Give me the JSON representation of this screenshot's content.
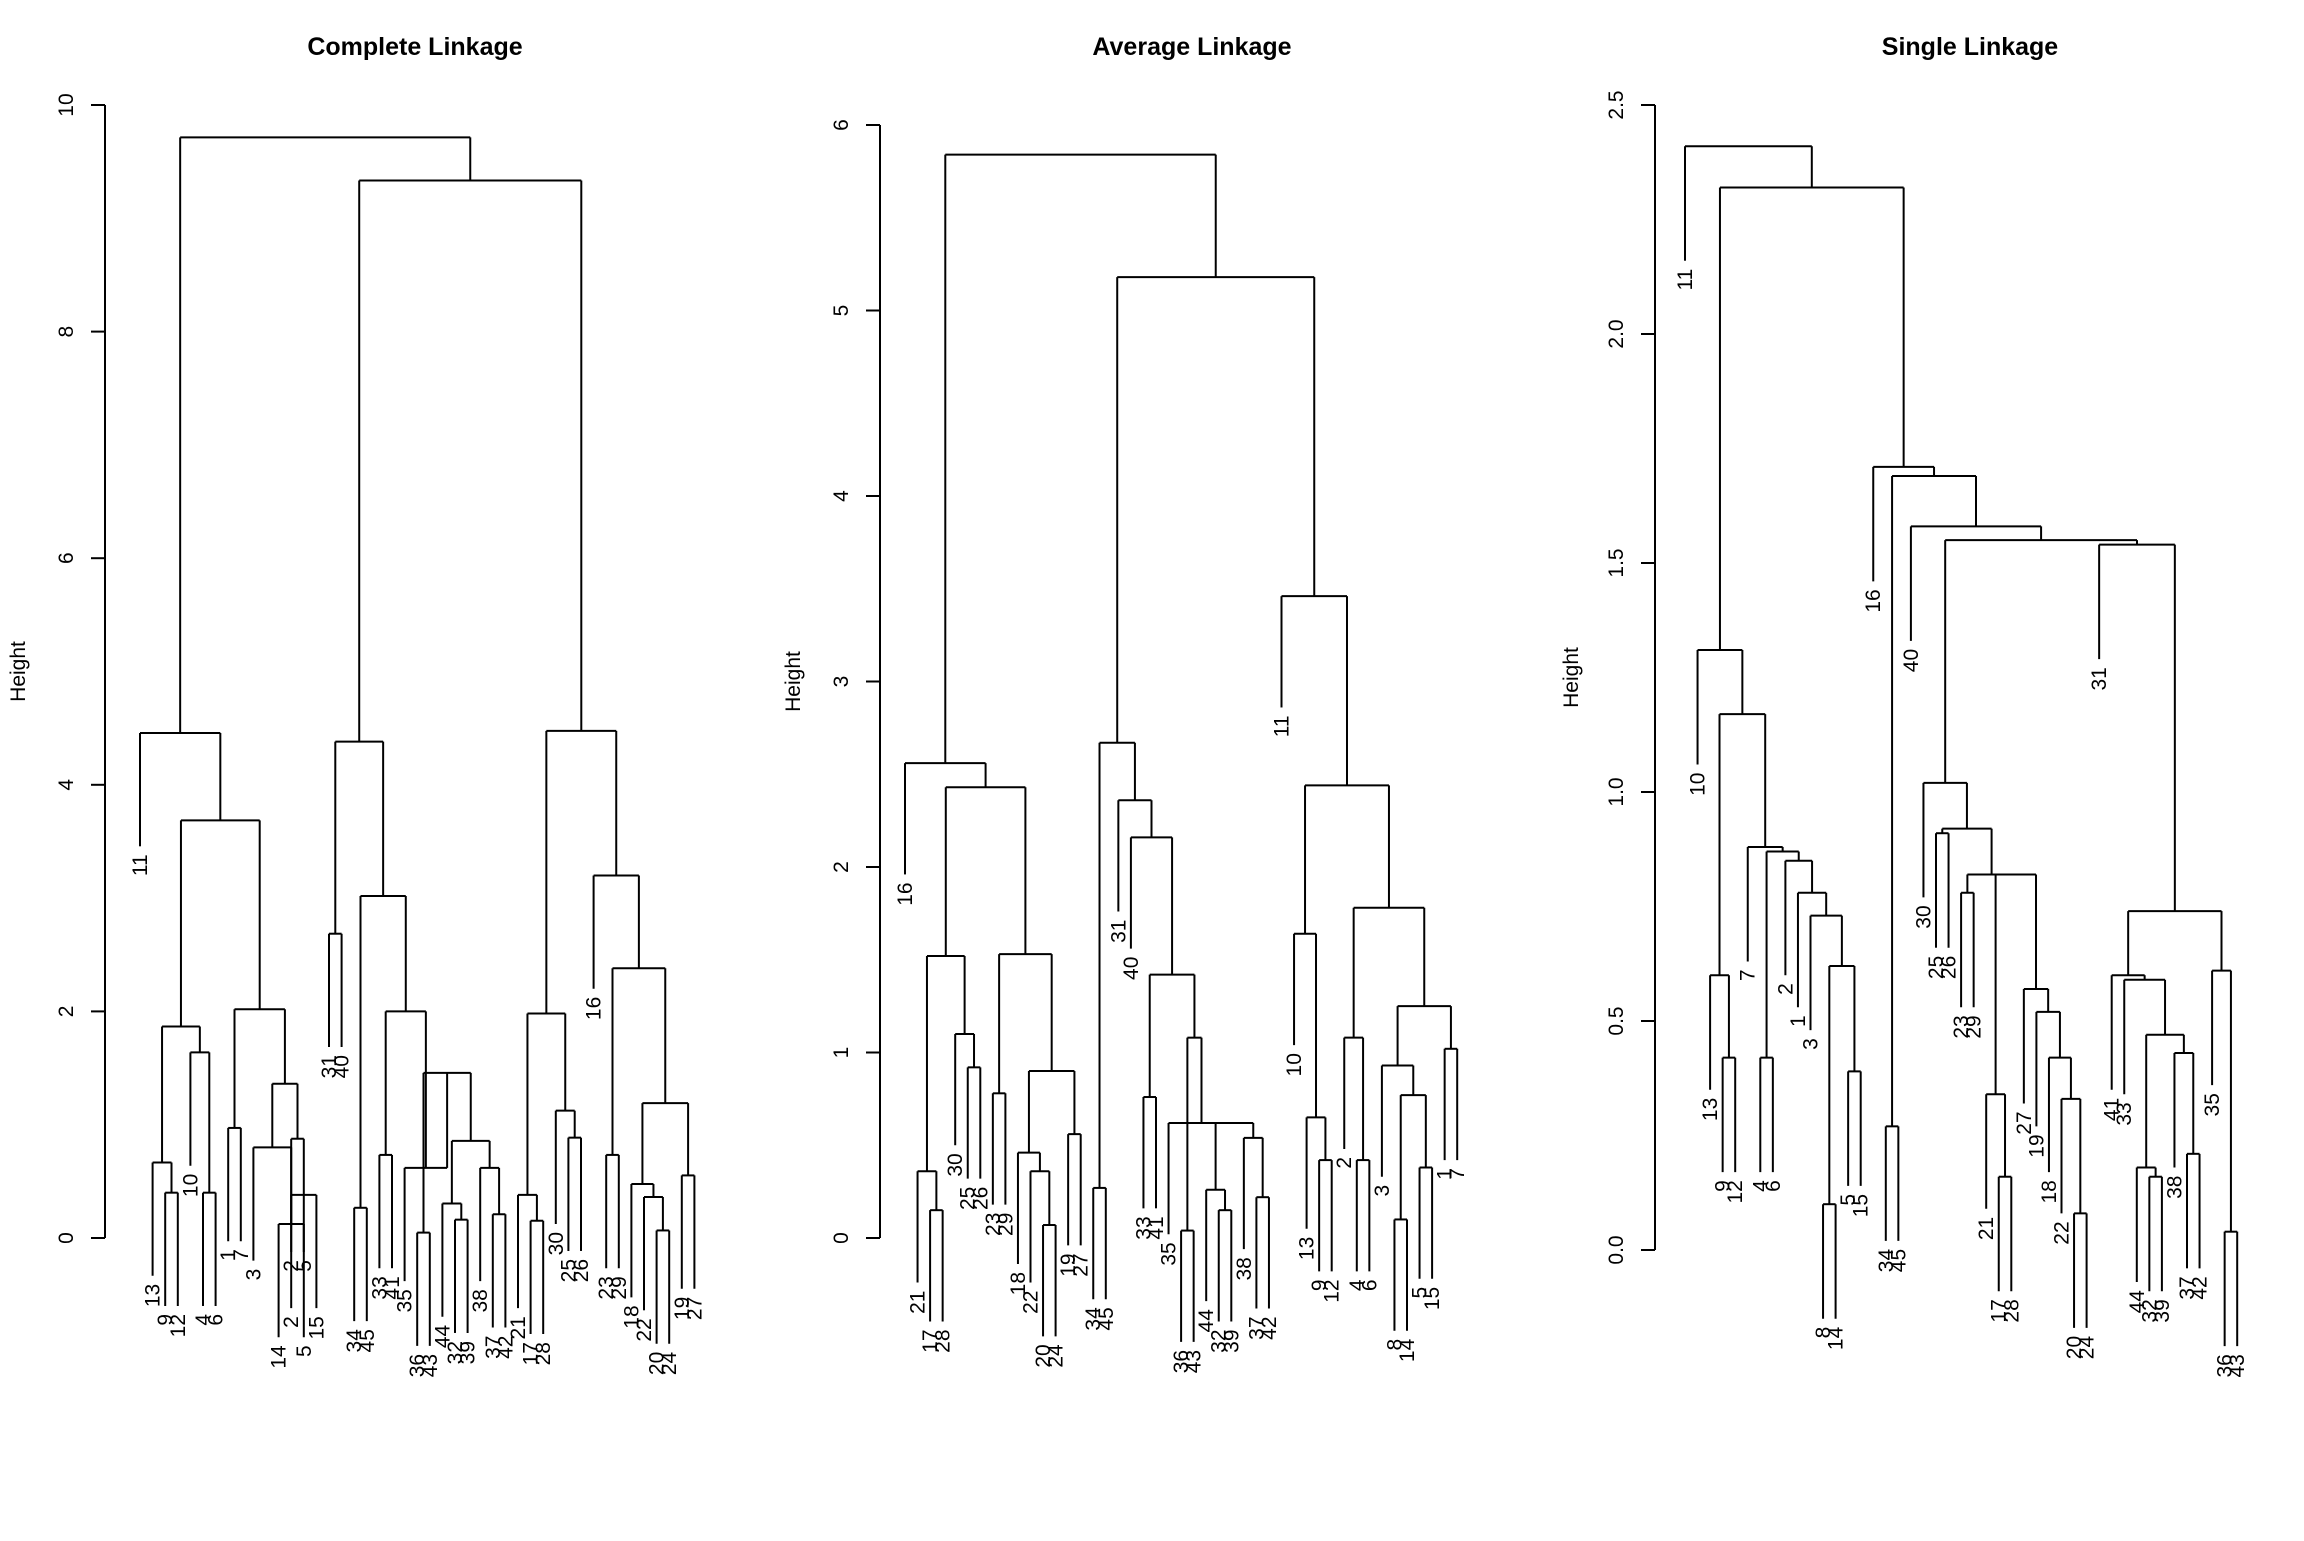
{
  "chart_data": [
    {
      "type": "dendrogram",
      "title": "Complete Linkage",
      "ylabel": "Height",
      "ylim": [
        0,
        10.5
      ],
      "yticks": [
        "0",
        "2",
        "4",
        "6",
        "8",
        "10"
      ],
      "order": [
        11,
        13,
        9,
        12,
        10,
        4,
        6,
        1,
        7,
        3,
        8,
        14,
        2,
        5,
        15,
        31,
        40,
        34,
        45,
        33,
        41,
        35,
        36,
        43,
        44,
        32,
        39,
        38,
        37,
        42,
        21,
        17,
        28,
        30,
        25,
        26,
        16,
        23,
        29,
        18,
        22,
        20,
        24,
        19,
        27
      ],
      "merges": [
        [
          -9,
          -12,
          0.42
        ],
        [
          -4,
          -6,
          0.42
        ],
        [
          -2,
          -15,
          0.4
        ],
        [
          1,
          -13,
          0.7
        ],
        [
          -10,
          2,
          1.72
        ],
        [
          4,
          5,
          1.96
        ],
        [
          -1,
          -7,
          1.02
        ],
        [
          -5,
          -14,
          0.13
        ],
        [
          -3,
          8,
          0.84
        ],
        [
          -2,
          -5,
          0.92
        ],
        [
          9,
          10,
          1.43
        ],
        [
          7,
          11,
          2.12
        ],
        [
          6,
          12,
          3.87
        ],
        [
          -11,
          13,
          4.68
        ],
        [
          -31,
          -40,
          2.82
        ],
        [
          -34,
          -45,
          0.28
        ],
        [
          -33,
          -41,
          0.77
        ],
        [
          -36,
          -43,
          0.05
        ],
        [
          -32,
          -39,
          0.17
        ],
        [
          -44,
          19,
          0.32
        ],
        [
          -37,
          -42,
          0.22
        ],
        [
          -38,
          21,
          0.65
        ],
        [
          20,
          22,
          0.9
        ],
        [
          18,
          23,
          1.53
        ],
        [
          -35,
          24,
          0.65
        ],
        [
          17,
          25,
          2.1
        ],
        [
          16,
          26,
          3.17
        ],
        [
          15,
          27,
          4.6
        ],
        [
          -17,
          -28,
          0.16
        ],
        [
          -21,
          29,
          0.4
        ],
        [
          -25,
          -26,
          0.93
        ],
        [
          -30,
          31,
          1.18
        ],
        [
          30,
          32,
          2.08
        ],
        [
          -23,
          -29,
          0.77
        ],
        [
          -20,
          -24,
          0.07
        ],
        [
          -22,
          35,
          0.38
        ],
        [
          -18,
          36,
          0.5
        ],
        [
          -19,
          -27,
          0.58
        ],
        [
          37,
          38,
          1.25
        ],
        [
          34,
          39,
          2.5
        ],
        [
          -16,
          40,
          3.36
        ],
        [
          33,
          41,
          4.7
        ],
        [
          28,
          42,
          9.8
        ],
        [
          14,
          43,
          10.2
        ]
      ]
    },
    {
      "type": "dendrogram",
      "title": "Average Linkage",
      "ylabel": "Height",
      "ylim": [
        0,
        6
      ],
      "yticks": [
        "0",
        "1",
        "2",
        "3",
        "4",
        "5",
        "6"
      ],
      "order": [
        16,
        21,
        17,
        28,
        30,
        25,
        26,
        23,
        29,
        18,
        22,
        20,
        24,
        19,
        27,
        34,
        45,
        31,
        40,
        33,
        41,
        35,
        36,
        43,
        44,
        32,
        39,
        38,
        37,
        42,
        11,
        10,
        13,
        9,
        12,
        2,
        4,
        6,
        3,
        8,
        14,
        5,
        15,
        1,
        7
      ],
      "merges": [
        [
          -17,
          -28,
          0.15
        ],
        [
          -21,
          1,
          0.36
        ],
        [
          -25,
          -26,
          0.92
        ],
        [
          -30,
          3,
          1.1
        ],
        [
          2,
          4,
          1.52
        ],
        [
          -23,
          -29,
          0.78
        ],
        [
          -20,
          -24,
          0.07
        ],
        [
          -22,
          7,
          0.36
        ],
        [
          -18,
          8,
          0.46
        ],
        [
          -19,
          -27,
          0.56
        ],
        [
          9,
          10,
          0.9
        ],
        [
          6,
          11,
          1.53
        ],
        [
          5,
          12,
          2.43
        ],
        [
          -16,
          13,
          2.56
        ],
        [
          -33,
          -41,
          0.76
        ],
        [
          -36,
          -43,
          0.04
        ],
        [
          -32,
          -39,
          0.15
        ],
        [
          -44,
          17,
          0.26
        ],
        [
          -37,
          -42,
          0.22
        ],
        [
          -38,
          19,
          0.54
        ],
        [
          18,
          20,
          0.62
        ],
        [
          -35,
          21,
          0.62
        ],
        [
          22,
          16,
          1.08
        ],
        [
          15,
          23,
          1.42
        ],
        [
          -40,
          24,
          2.16
        ],
        [
          -31,
          25,
          2.36
        ],
        [
          -34,
          -45,
          0.27
        ],
        [
          27,
          26,
          2.67
        ],
        [
          -9,
          -12,
          0.42
        ],
        [
          -13,
          29,
          0.65
        ],
        [
          -10,
          30,
          1.64
        ],
        [
          -4,
          -6,
          0.42
        ],
        [
          -2,
          32,
          1.08
        ],
        [
          -8,
          -14,
          0.1
        ],
        [
          -5,
          -15,
          0.38
        ],
        [
          34,
          35,
          0.77
        ],
        [
          -3,
          36,
          0.93
        ],
        [
          -1,
          -7,
          1.02
        ],
        [
          37,
          38,
          1.25
        ],
        [
          33,
          39,
          1.78
        ],
        [
          31,
          40,
          2.44
        ],
        [
          -11,
          41,
          3.46
        ],
        [
          28,
          42,
          5.18
        ],
        [
          14,
          43,
          5.84
        ]
      ]
    },
    {
      "type": "dendrogram",
      "title": "Single Linkage",
      "ylabel": "Height",
      "ylim": [
        0,
        2.5
      ],
      "yticks": [
        "0.0",
        "0.5",
        "1.0",
        "1.5",
        "2.0",
        "2.5"
      ],
      "order": [
        11,
        10,
        13,
        9,
        12,
        7,
        4,
        6,
        2,
        1,
        3,
        8,
        14,
        5,
        15,
        16,
        34,
        45,
        40,
        30,
        25,
        26,
        23,
        29,
        21,
        17,
        28,
        27,
        19,
        18,
        22,
        20,
        24,
        31,
        41,
        33,
        44,
        32,
        39,
        38,
        37,
        42,
        35,
        36,
        43
      ],
      "merges": [
        [
          -9,
          -12,
          0.42
        ],
        [
          -13,
          1,
          0.6
        ],
        [
          -4,
          -6,
          0.42
        ],
        [
          -8,
          -14,
          0.1
        ],
        [
          -5,
          -15,
          0.39
        ],
        [
          4,
          5,
          0.62
        ],
        [
          -3,
          6,
          0.73
        ],
        [
          -1,
          7,
          0.78
        ],
        [
          -2,
          8,
          0.85
        ],
        [
          3,
          9,
          0.87
        ],
        [
          -7,
          10,
          0.88
        ],
        [
          2,
          11,
          1.17
        ],
        [
          -10,
          12,
          1.31
        ],
        [
          -17,
          -28,
          0.16
        ],
        [
          -21,
          14,
          0.34
        ],
        [
          -20,
          -24,
          0.08
        ],
        [
          -22,
          16,
          0.33
        ],
        [
          -18,
          17,
          0.42
        ],
        [
          -19,
          18,
          0.52
        ],
        [
          -27,
          19,
          0.57
        ],
        [
          15,
          20,
          0.82
        ],
        [
          -23,
          -29,
          0.78
        ],
        [
          22,
          21,
          0.82
        ],
        [
          -25,
          -26,
          0.91
        ],
        [
          24,
          23,
          0.92
        ],
        [
          -30,
          25,
          1.02
        ],
        [
          -32,
          -39,
          0.16
        ],
        [
          -44,
          27,
          0.18
        ],
        [
          -37,
          -42,
          0.21
        ],
        [
          -38,
          29,
          0.43
        ],
        [
          28,
          30,
          0.47
        ],
        [
          -33,
          31,
          0.59
        ],
        [
          -36,
          -43,
          0.04
        ],
        [
          -35,
          33,
          0.61
        ],
        [
          -41,
          32,
          0.6
        ],
        [
          35,
          34,
          0.74
        ],
        [
          -31,
          36,
          1.54
        ],
        [
          26,
          37,
          1.55
        ],
        [
          -40,
          38,
          1.58
        ],
        [
          -34,
          -45,
          0.27
        ],
        [
          40,
          39,
          1.69
        ],
        [
          -16,
          41,
          1.71
        ],
        [
          13,
          42,
          2.32
        ],
        [
          -11,
          43,
          2.41
        ]
      ]
    }
  ]
}
